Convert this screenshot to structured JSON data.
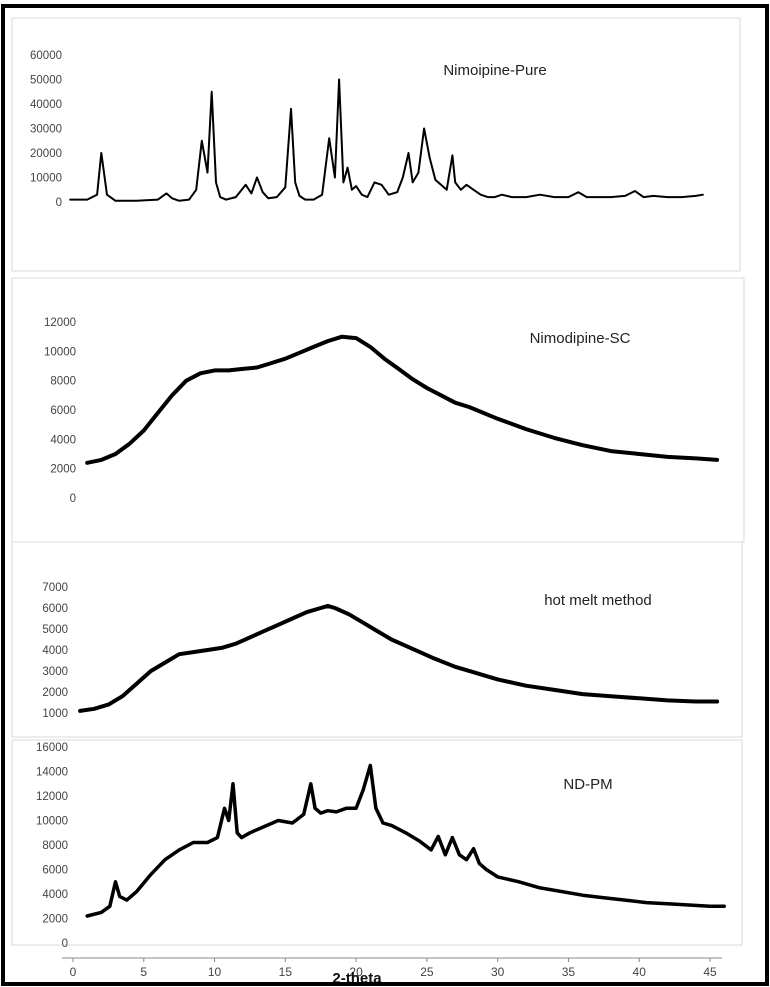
{
  "figure": {
    "xlabel": "2-theta",
    "xticks": [
      "0",
      "5",
      "10",
      "15",
      "20",
      "25",
      "30",
      "35",
      "40",
      "45"
    ],
    "xlim": [
      0,
      45
    ]
  },
  "chart_data": [
    {
      "type": "line",
      "title": "Nimoipine-Pure",
      "ylim": [
        0,
        60000
      ],
      "yticks": [
        "0",
        "10000",
        "20000",
        "30000",
        "40000",
        "50000",
        "60000"
      ],
      "series": [
        {
          "x": [
            -0.2,
            1.0,
            1.7,
            2.0,
            2.4,
            3.0,
            4.5,
            6.0,
            6.6,
            7.0,
            7.5,
            8.2,
            8.7,
            9.1,
            9.5,
            9.8,
            10.1,
            10.4,
            10.8,
            11.5,
            12.2,
            12.6,
            13.0,
            13.4,
            13.8,
            14.4,
            15.0,
            15.4,
            15.7,
            16.0,
            16.4,
            17.0,
            17.6,
            18.1,
            18.5,
            18.8,
            19.1,
            19.4,
            19.7,
            20.0,
            20.4,
            20.8,
            21.3,
            21.8,
            22.3,
            22.9,
            23.3,
            23.7,
            24.0,
            24.4,
            24.8,
            25.2,
            25.6,
            26.0,
            26.4,
            26.8,
            27.0,
            27.4,
            27.8,
            28.3,
            28.8,
            29.3,
            29.8,
            30.3,
            31.0,
            32.0,
            33.0,
            34.0,
            35.0,
            35.7,
            36.3,
            37.0,
            38.0,
            39.0,
            39.7,
            40.3,
            41.0,
            42.0,
            43.0,
            44.0,
            44.5
          ],
          "y": [
            1000,
            1000,
            3000,
            20000,
            3000,
            500,
            500,
            1000,
            3500,
            1500,
            500,
            1000,
            5000,
            25000,
            12000,
            45000,
            8000,
            2000,
            1000,
            2000,
            7000,
            3500,
            10000,
            4000,
            1500,
            2000,
            6000,
            38000,
            8000,
            2500,
            1000,
            1000,
            3000,
            26000,
            10000,
            50000,
            8000,
            14000,
            5000,
            6500,
            3000,
            2000,
            8000,
            7000,
            3000,
            4000,
            10000,
            20000,
            8000,
            12000,
            30000,
            18000,
            9000,
            7000,
            5000,
            19000,
            8000,
            5000,
            7000,
            5000,
            3000,
            2000,
            2000,
            3000,
            2000,
            2000,
            3000,
            2000,
            2000,
            4000,
            2000,
            2000,
            2000,
            2500,
            4500,
            2000,
            2500,
            2000,
            2000,
            2500,
            3000
          ]
        }
      ]
    },
    {
      "type": "line",
      "title": "Nimodipine-SC",
      "ylim": [
        0,
        12000
      ],
      "yticks": [
        "0",
        "2000",
        "4000",
        "6000",
        "8000",
        "10000",
        "12000"
      ],
      "series": [
        {
          "x": [
            1.0,
            2.0,
            3.0,
            4.0,
            5.0,
            6.0,
            7.0,
            8.0,
            9.0,
            10.0,
            11.0,
            12.0,
            13.0,
            14.0,
            15.0,
            16.0,
            17.0,
            18.0,
            19.0,
            20.0,
            21.0,
            22.0,
            23.0,
            24.0,
            25.0,
            26.0,
            27.0,
            28.0,
            30.0,
            32.0,
            34.0,
            36.0,
            38.0,
            40.0,
            42.0,
            44.0,
            45.5
          ],
          "y": [
            2400,
            2600,
            3000,
            3700,
            4600,
            5800,
            7000,
            8000,
            8500,
            8700,
            8700,
            8800,
            8900,
            9200,
            9500,
            9900,
            10300,
            10700,
            11000,
            10900,
            10300,
            9500,
            8800,
            8100,
            7500,
            7000,
            6500,
            6200,
            5400,
            4700,
            4100,
            3600,
            3200,
            3000,
            2800,
            2700,
            2600
          ]
        }
      ]
    },
    {
      "type": "line",
      "title": "hot melt method",
      "ylim": [
        1000,
        7000
      ],
      "yticks": [
        "1000",
        "2000",
        "3000",
        "4000",
        "5000",
        "6000",
        "7000"
      ],
      "series": [
        {
          "x": [
            0.5,
            1.5,
            2.5,
            3.5,
            4.5,
            5.5,
            6.5,
            7.5,
            8.5,
            9.5,
            10.5,
            11.5,
            12.5,
            13.5,
            14.5,
            15.5,
            16.5,
            17.5,
            18.0,
            18.5,
            19.5,
            20.5,
            21.5,
            22.5,
            23.5,
            24.5,
            25.5,
            27.0,
            28.5,
            30.0,
            32.0,
            34.0,
            36.0,
            38.0,
            40.0,
            42.0,
            44.0,
            45.5
          ],
          "y": [
            1100,
            1200,
            1400,
            1800,
            2400,
            3000,
            3400,
            3800,
            3900,
            4000,
            4100,
            4300,
            4600,
            4900,
            5200,
            5500,
            5800,
            6000,
            6100,
            6000,
            5700,
            5300,
            4900,
            4500,
            4200,
            3900,
            3600,
            3200,
            2900,
            2600,
            2300,
            2100,
            1900,
            1800,
            1700,
            1600,
            1550,
            1550
          ]
        }
      ]
    },
    {
      "type": "line",
      "title": "ND-PM",
      "ylim": [
        0,
        16000
      ],
      "yticks": [
        "0",
        "2000",
        "4000",
        "6000",
        "8000",
        "10000",
        "12000",
        "14000",
        "16000"
      ],
      "series": [
        {
          "x": [
            1.0,
            2.0,
            2.6,
            3.0,
            3.3,
            3.8,
            4.5,
            5.5,
            6.5,
            7.5,
            8.5,
            9.5,
            10.2,
            10.7,
            11.0,
            11.3,
            11.6,
            11.9,
            12.5,
            13.5,
            14.5,
            15.5,
            16.3,
            16.8,
            17.1,
            17.5,
            18.0,
            18.6,
            19.3,
            20.0,
            20.5,
            21.0,
            21.4,
            21.9,
            22.5,
            23.5,
            24.5,
            25.3,
            25.8,
            26.3,
            26.8,
            27.3,
            27.8,
            28.3,
            28.7,
            29.2,
            30.0,
            31.5,
            33.0,
            34.5,
            36.0,
            37.5,
            39.0,
            40.5,
            42.0,
            43.5,
            45.0,
            46.0
          ],
          "y": [
            2200,
            2500,
            3000,
            5000,
            3800,
            3500,
            4200,
            5600,
            6800,
            7600,
            8200,
            8200,
            8600,
            11000,
            10000,
            13000,
            9000,
            8600,
            9000,
            9500,
            10000,
            9800,
            10500,
            13000,
            11000,
            10600,
            10800,
            10700,
            11000,
            11000,
            12500,
            14500,
            11000,
            9800,
            9600,
            9000,
            8300,
            7600,
            8700,
            7200,
            8600,
            7200,
            6800,
            7700,
            6500,
            6000,
            5400,
            5000,
            4500,
            4200,
            3900,
            3700,
            3500,
            3300,
            3200,
            3100,
            3000,
            3000
          ]
        }
      ]
    }
  ]
}
